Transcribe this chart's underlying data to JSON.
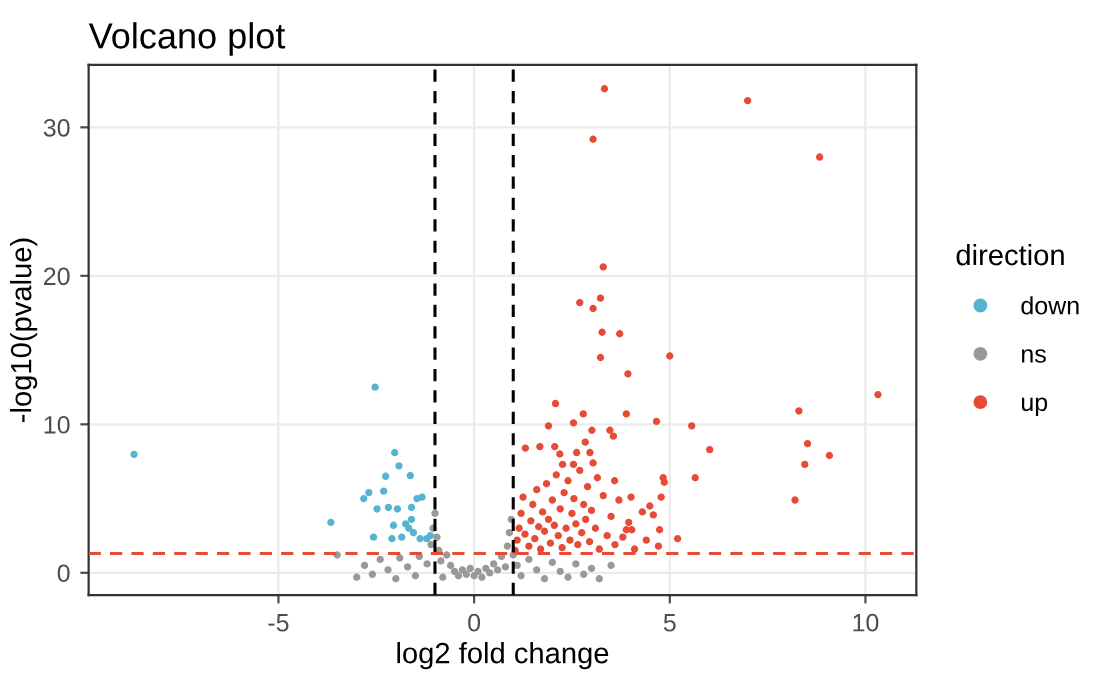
{
  "chart_data": {
    "type": "scatter",
    "title": "Volcano plot",
    "xlabel": "log2 fold change",
    "ylabel": "-log10(pvalue)",
    "legend_title": "direction",
    "xlim": [
      -9.85,
      11.3
    ],
    "ylim": [
      -1.5,
      34.2
    ],
    "xticks": [
      -5,
      0,
      5,
      10
    ],
    "yticks": [
      0,
      10,
      20,
      30
    ],
    "grid": true,
    "legend": "right",
    "marker": "circle",
    "ref_lines": [
      {
        "axis": "x",
        "value": -1,
        "color": "#000000",
        "line_style": "dashed"
      },
      {
        "axis": "x",
        "value": 1,
        "color": "#000000",
        "line_style": "dashed"
      },
      {
        "axis": "y",
        "value": 1.3,
        "color": "#e64b35",
        "line_style": "dashed"
      }
    ],
    "series": [
      {
        "name": "down",
        "color": "#56b4d0",
        "x": [
          -8.69,
          -2.53,
          -2.03,
          -1.92,
          -2.26,
          -1.63,
          -2.69,
          -2.82,
          -2.31,
          -2.19,
          -2.48,
          -1.96,
          -1.6,
          -1.33,
          -1.46,
          -3.66,
          -1.75,
          -2.06,
          -1.67,
          -1.55,
          -2.1,
          -2.57,
          -1.38,
          -1.21,
          -1.12,
          -1.85,
          -1.6
        ],
        "values": [
          7.98,
          12.5,
          8.1,
          7.2,
          6.5,
          6.55,
          5.4,
          5.0,
          5.5,
          4.4,
          4.3,
          4.3,
          4.4,
          5.1,
          5.0,
          3.4,
          3.3,
          3.2,
          3.0,
          2.7,
          2.3,
          2.4,
          2.3,
          2.3,
          2.5,
          2.4,
          3.6
        ]
      },
      {
        "name": "ns",
        "color": "#999999",
        "x": [
          -3.0,
          -2.8,
          -2.6,
          -2.4,
          -2.2,
          -2.0,
          -1.9,
          -1.7,
          -1.5,
          -1.4,
          -1.2,
          -1.1,
          -1.05,
          -1.0,
          -0.95,
          -0.9,
          -0.85,
          -0.8,
          -0.7,
          -0.6,
          -0.5,
          -0.4,
          -0.3,
          -0.2,
          -0.1,
          0,
          0.1,
          0.2,
          0.3,
          0.4,
          0.5,
          0.6,
          0.7,
          0.8,
          0.85,
          0.9,
          0.95,
          1.0,
          1.1,
          1.2,
          1.4,
          1.6,
          1.8,
          2.0,
          2.2,
          2.4,
          2.6,
          2.8,
          3.0,
          3.2,
          -3.5,
          3.5
        ],
        "values": [
          -0.3,
          0.5,
          -0.1,
          0.9,
          0.2,
          -0.4,
          1.0,
          0.4,
          -0.2,
          1.1,
          0.6,
          1.9,
          3.0,
          4.0,
          2.4,
          1.5,
          0.8,
          -0.3,
          1.2,
          0.5,
          0.1,
          -0.2,
          0.2,
          -0.1,
          0.3,
          -0.2,
          0.1,
          -0.3,
          0.3,
          0.0,
          0.6,
          0.2,
          1.1,
          0.4,
          1.8,
          2.7,
          3.6,
          1.2,
          0.5,
          -0.2,
          0.9,
          0.2,
          -0.4,
          0.7,
          0.1,
          -0.3,
          0.6,
          -0.1,
          0.3,
          -0.4,
          1.2,
          0.5
        ]
      },
      {
        "name": "up",
        "color": "#e64b35",
        "x": [
          3.33,
          3.04,
          3.3,
          2.7,
          3.23,
          3.04,
          3.27,
          3.72,
          3.23,
          5.0,
          3.93,
          3.89,
          4.66,
          2.08,
          2.79,
          2.54,
          1.9,
          3.01,
          3.47,
          3.56,
          1.31,
          1.68,
          2.06,
          2.84,
          2.19,
          2.62,
          2.96,
          2.26,
          2.54,
          3.04,
          3.59,
          4.01,
          4.49,
          4.58,
          4.83,
          4.86,
          4.78,
          3.89,
          4.03,
          4.74,
          4.71,
          5.2,
          6.99,
          8.83,
          10.32,
          8.3,
          5.56,
          6.02,
          8.52,
          8.45,
          9.08,
          5.65,
          8.2,
          1.05,
          1.1,
          1.15,
          1.2,
          1.25,
          1.3,
          1.4,
          1.45,
          1.5,
          1.55,
          1.6,
          1.65,
          1.7,
          1.75,
          1.8,
          1.85,
          1.9,
          1.95,
          2.0,
          2.05,
          2.1,
          2.15,
          2.2,
          2.25,
          2.3,
          2.35,
          2.4,
          2.45,
          2.5,
          2.55,
          2.6,
          2.65,
          2.7,
          2.75,
          2.8,
          2.85,
          2.9,
          2.95,
          3.0,
          3.1,
          3.15,
          3.2,
          3.3,
          3.4,
          3.5,
          3.6,
          3.7,
          3.8,
          3.95,
          4.1,
          4.3,
          4.4
        ],
        "values": [
          32.6,
          29.2,
          20.6,
          18.2,
          18.5,
          17.8,
          16.2,
          16.1,
          14.5,
          14.6,
          13.4,
          10.7,
          10.2,
          11.4,
          10.7,
          10.1,
          9.9,
          9.6,
          9.6,
          9.2,
          8.4,
          8.5,
          8.5,
          8.8,
          8.0,
          8.1,
          8.1,
          7.3,
          7.3,
          7.4,
          6.2,
          5.1,
          4.5,
          3.9,
          6.4,
          6.1,
          5.1,
          2.9,
          2.9,
          2.9,
          1.8,
          2.3,
          31.8,
          28.0,
          12.0,
          10.9,
          9.9,
          8.3,
          8.7,
          7.3,
          7.9,
          6.4,
          4.9,
          1.5,
          2.2,
          3.0,
          4.0,
          5.1,
          2.6,
          1.8,
          3.5,
          4.6,
          2.3,
          5.6,
          3.1,
          1.6,
          4.1,
          2.8,
          6.0,
          3.6,
          2.0,
          4.9,
          3.2,
          6.6,
          2.5,
          4.3,
          1.7,
          5.4,
          3.0,
          6.2,
          2.2,
          4.0,
          5.0,
          3.3,
          1.9,
          6.9,
          2.7,
          4.6,
          3.6,
          5.8,
          2.1,
          4.2,
          3.0,
          6.4,
          1.6,
          5.2,
          2.5,
          3.8,
          1.9,
          4.9,
          2.4,
          3.4,
          1.6,
          4.1,
          2.2
        ]
      }
    ]
  }
}
